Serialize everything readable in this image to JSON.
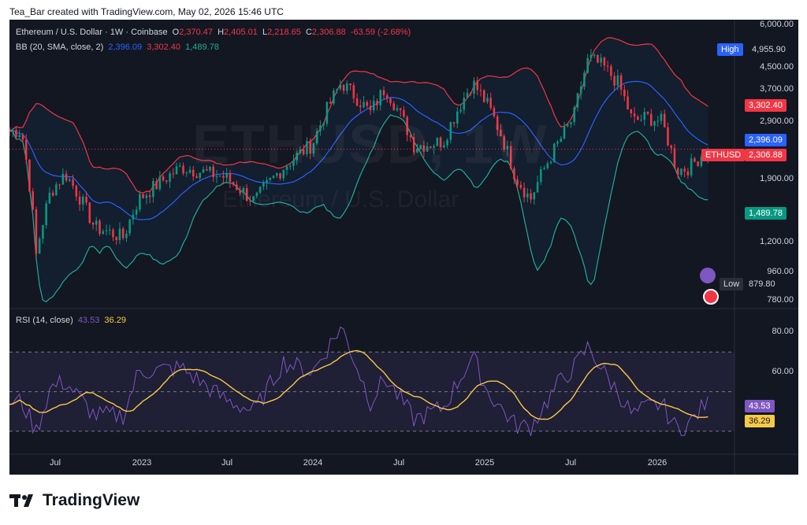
{
  "header": {
    "caption": "Tea_Bar created with TradingView.com, May 02, 2026 15:46 UTC"
  },
  "legend": {
    "symbol": "Ethereum / U.S. Dollar · 1W · Coinbase",
    "open_label": "O",
    "open": "2,370.47",
    "high_label": "H",
    "high": "2,405.01",
    "low_label": "L",
    "low": "2,218.65",
    "close_label": "C",
    "close": "2,306.88",
    "change": "-63.59 (-2.68%)",
    "bb_label": "BB (20, SMA, close, 2)",
    "bb_basis": "2,396.09",
    "bb_upper": "3,302.40",
    "bb_lower": "1,489.78",
    "rsi_label": "RSI (14, close)",
    "rsi_value": "43.53",
    "rsi_ma": "36.29"
  },
  "watermark": {
    "ticker": "ETHUSD, 1W",
    "name": "Ethereum / U.S. Dollar"
  },
  "price_scale": {
    "labels": [
      "6,000.00",
      "4,500.00",
      "3,700.00",
      "2,900.00",
      "1,900.00",
      "1,200.00",
      "960.00",
      "780.00"
    ]
  },
  "rsi_scale": {
    "labels": [
      "80.00",
      "60.00"
    ]
  },
  "tags": {
    "high_label": "High",
    "high_value": "4,955.90",
    "upper_value": "3,302.40",
    "basis_value": "2,396.09",
    "ticker": "ETHUSD",
    "price_value": "2,306.88",
    "lower_value": "1,489.78",
    "low_label": "Low",
    "low_value": "879.80",
    "rsi_value": "43.53",
    "rsi_ma_value": "36.29"
  },
  "x_axis": {
    "labels": [
      "Jul",
      "2023",
      "Jul",
      "2024",
      "Jul",
      "2025",
      "Jul",
      "2026"
    ]
  },
  "brand": {
    "name": "TradingView"
  },
  "colors": {
    "background": "#131722",
    "up": "#089981",
    "down": "#f23645",
    "bb_upper": "#f23645",
    "bb_basis": "#2962ff",
    "bb_lower": "#22ab94",
    "rsi": "#7e57c2",
    "rsi_ma": "#f7c948"
  },
  "chart_data": {
    "type": "candlestick",
    "title": "Ethereum / U.S. Dollar · 1W · Coinbase",
    "ylim": [
      720,
      6000
    ],
    "scale": "log",
    "anchors": [
      {
        "date": "2022-05",
        "close": 2700
      },
      {
        "date": "2022-06",
        "close": 1050
      },
      {
        "date": "2022-07",
        "close": 1700
      },
      {
        "date": "2022-08",
        "close": 1950
      },
      {
        "date": "2022-10",
        "close": 1300
      },
      {
        "date": "2022-12",
        "close": 1200
      },
      {
        "date": "2023-01",
        "close": 1600
      },
      {
        "date": "2023-04",
        "close": 2050
      },
      {
        "date": "2023-07",
        "close": 1900
      },
      {
        "date": "2023-09",
        "close": 1580
      },
      {
        "date": "2023-11",
        "close": 2050
      },
      {
        "date": "2024-01",
        "close": 2450
      },
      {
        "date": "2024-03",
        "close": 3900
      },
      {
        "date": "2024-05",
        "close": 3100
      },
      {
        "date": "2024-06",
        "close": 3750
      },
      {
        "date": "2024-08",
        "close": 2400
      },
      {
        "date": "2024-10",
        "close": 2500
      },
      {
        "date": "2024-12",
        "close": 3900
      },
      {
        "date": "2025-01",
        "close": 3300
      },
      {
        "date": "2025-03",
        "close": 1900
      },
      {
        "date": "2025-04",
        "close": 1600
      },
      {
        "date": "2025-06",
        "close": 2500
      },
      {
        "date": "2025-07",
        "close": 3000
      },
      {
        "date": "2025-08",
        "close": 4700
      },
      {
        "date": "2025-09",
        "close": 4400
      },
      {
        "date": "2025-10",
        "close": 3900
      },
      {
        "date": "2025-11",
        "close": 2900
      },
      {
        "date": "2025-12",
        "close": 3000
      },
      {
        "date": "2026-01",
        "close": 2900
      },
      {
        "date": "2026-02",
        "close": 2000
      },
      {
        "date": "2026-03",
        "close": 2050
      },
      {
        "date": "2026-04",
        "close": 2306
      }
    ],
    "rsi": [
      {
        "date": "2022-05",
        "value": 45
      },
      {
        "date": "2022-06",
        "value": 30
      },
      {
        "date": "2022-07",
        "value": 52
      },
      {
        "date": "2022-08",
        "value": 55
      },
      {
        "date": "2022-10",
        "value": 38
      },
      {
        "date": "2022-12",
        "value": 38
      },
      {
        "date": "2023-01",
        "value": 60
      },
      {
        "date": "2023-04",
        "value": 62
      },
      {
        "date": "2023-07",
        "value": 46
      },
      {
        "date": "2023-09",
        "value": 40
      },
      {
        "date": "2023-11",
        "value": 65
      },
      {
        "date": "2024-01",
        "value": 60
      },
      {
        "date": "2024-03",
        "value": 83
      },
      {
        "date": "2024-05",
        "value": 45
      },
      {
        "date": "2024-06",
        "value": 57
      },
      {
        "date": "2024-08",
        "value": 36
      },
      {
        "date": "2024-10",
        "value": 42
      },
      {
        "date": "2024-12",
        "value": 68
      },
      {
        "date": "2025-01",
        "value": 50
      },
      {
        "date": "2025-03",
        "value": 33
      },
      {
        "date": "2025-04",
        "value": 32
      },
      {
        "date": "2025-06",
        "value": 55
      },
      {
        "date": "2025-07",
        "value": 62
      },
      {
        "date": "2025-08",
        "value": 73
      },
      {
        "date": "2025-09",
        "value": 60
      },
      {
        "date": "2025-10",
        "value": 50
      },
      {
        "date": "2025-11",
        "value": 38
      },
      {
        "date": "2025-12",
        "value": 42
      },
      {
        "date": "2026-01",
        "value": 44
      },
      {
        "date": "2026-02",
        "value": 31
      },
      {
        "date": "2026-03",
        "value": 34
      },
      {
        "date": "2026-04",
        "value": 43.53
      }
    ],
    "rsi_range": [
      20,
      90
    ],
    "rsi_levels": [
      70,
      30
    ],
    "indicators": [
      "BB (20, SMA, close, 2)",
      "RSI (14, close)"
    ]
  }
}
